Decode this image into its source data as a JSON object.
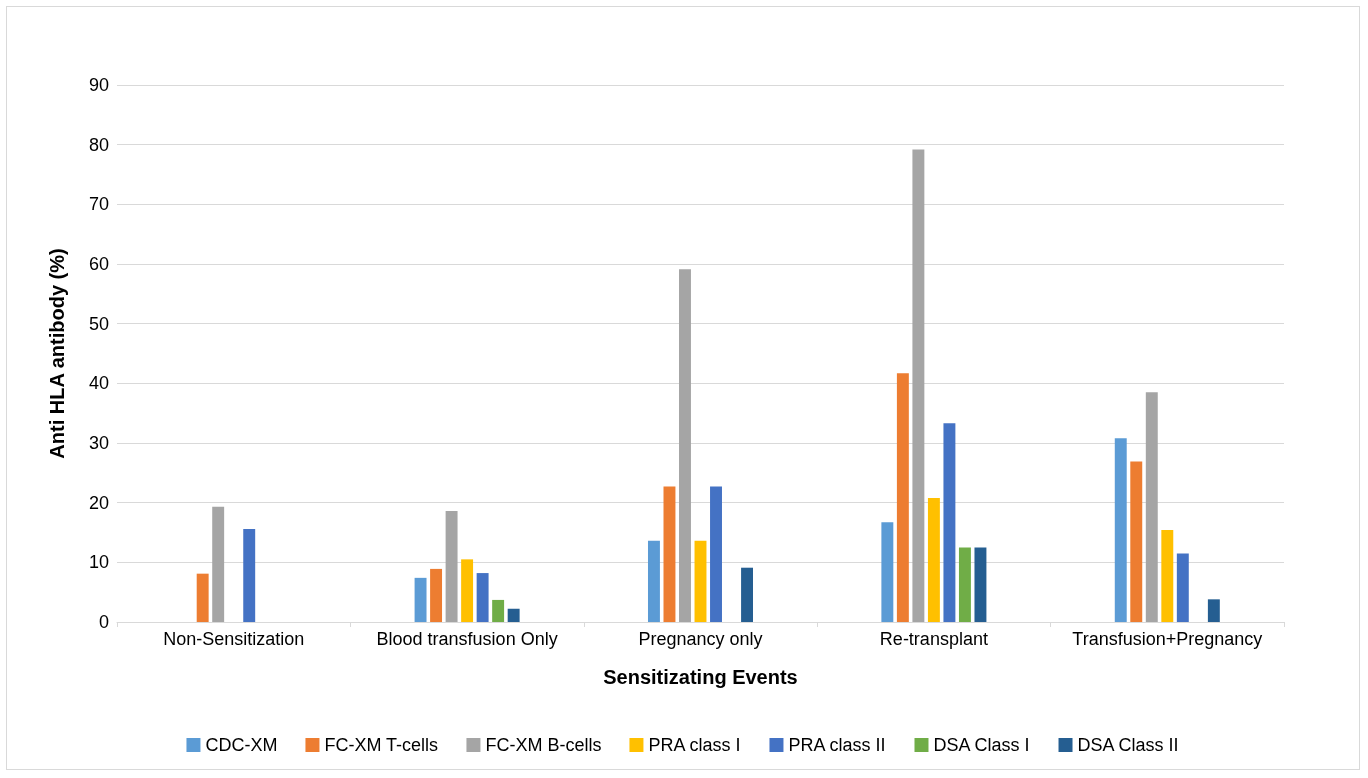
{
  "chart_data": {
    "type": "bar",
    "xlabel": "Sensitizating Events",
    "ylabel": "Anti HLA antibody (%)",
    "categories": [
      "Non-Sensitization",
      "Blood transfusion Only",
      "Pregnancy only",
      "Re-transplant",
      "Transfusion+Pregnancy"
    ],
    "series": [
      {
        "name": "CDC-XM",
        "color": "#5b9bd5",
        "values": [
          0,
          7.4,
          13.6,
          16.7,
          30.8
        ]
      },
      {
        "name": "FC-XM T-cells",
        "color": "#ed7d31",
        "values": [
          8.1,
          8.9,
          22.7,
          41.7,
          26.9
        ]
      },
      {
        "name": "FC-XM B-cells",
        "color": "#a5a5a5",
        "values": [
          19.3,
          18.6,
          59.1,
          79.2,
          38.5
        ]
      },
      {
        "name": "PRA class I",
        "color": "#ffc000",
        "values": [
          0,
          10.5,
          13.6,
          20.8,
          15.4
        ]
      },
      {
        "name": "PRA class II",
        "color": "#4472c4",
        "values": [
          15.6,
          8.2,
          22.7,
          33.3,
          11.5
        ]
      },
      {
        "name": "DSA Class I",
        "color": "#70ad47",
        "values": [
          0,
          3.7,
          0,
          12.5,
          0
        ]
      },
      {
        "name": "DSA Class II",
        "color": "#255e91",
        "values": [
          0,
          2.2,
          9.1,
          12.5,
          3.8
        ]
      }
    ],
    "ylim": [
      0,
      90
    ],
    "yticks": [
      0,
      10,
      20,
      30,
      40,
      50,
      60,
      70,
      80,
      90
    ],
    "grid": "y",
    "legend": "bottom"
  }
}
